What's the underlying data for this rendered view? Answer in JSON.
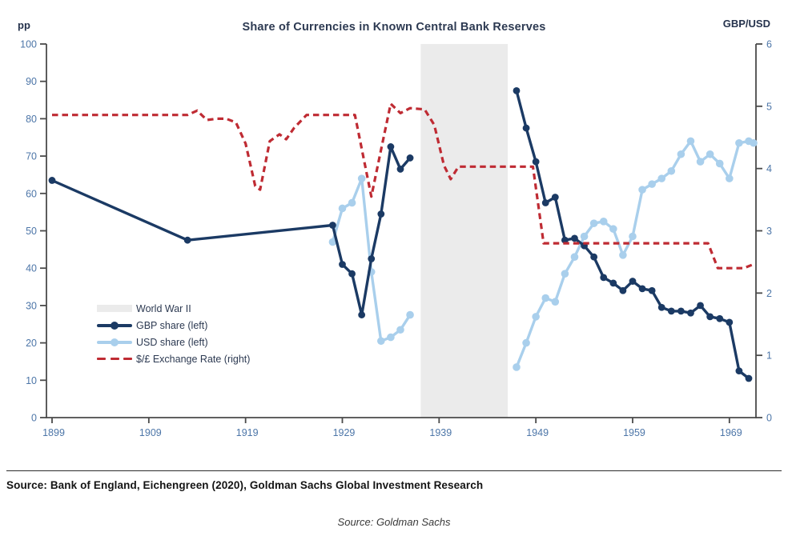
{
  "page": {
    "title": "Share of Currencies in Known Central Bank Reserves",
    "left_axis_unit": "pp",
    "right_axis_unit": "GBP/USD",
    "source_line": "Source: Bank of England, Eichengreen (2020), Goldman Sachs Global Investment Research",
    "caption": "Source: Goldman Sachs"
  },
  "legend": {
    "items": [
      {
        "key": "wwii",
        "label": "World War II"
      },
      {
        "key": "gbp",
        "label": "GBP share (left)"
      },
      {
        "key": "usd",
        "label": "USD share (left)"
      },
      {
        "key": "fx",
        "label": "$/£ Exchange Rate (right)"
      }
    ]
  },
  "colors": {
    "gbp_navy": "#1b3a64",
    "usd_blue": "#a9cfec",
    "fx_red": "#bf2b33",
    "band_grey": "#ebebeb",
    "axis_grey": "#4a4a4a",
    "tick_label_blue": "#4d76a8"
  },
  "chart_data": {
    "type": "line",
    "title": "Share of Currencies in Known Central Bank Reserves",
    "x_range": [
      1899,
      1971.6
    ],
    "x_ticks": [
      1899,
      1909,
      1919,
      1929,
      1939,
      1949,
      1959,
      1969
    ],
    "y_left": {
      "unit": "pp",
      "min": 0,
      "max": 100,
      "ticks": [
        0,
        10,
        20,
        30,
        40,
        50,
        60,
        70,
        80,
        90,
        100
      ]
    },
    "y_right": {
      "unit": "GBP/USD",
      "min": 0,
      "max": 6,
      "ticks": [
        0,
        1,
        2,
        3,
        4,
        5,
        6
      ]
    },
    "grid": false,
    "legend_position": "middle-left",
    "wwii_band": {
      "label": "World War II",
      "from": 1937.1,
      "to": 1946.1,
      "color": "#ebebeb"
    },
    "series": [
      {
        "key": "usd",
        "name": "USD share (left)",
        "axis": "left",
        "style": "solid-dots",
        "color": "#a9cfec",
        "line_width": 3.4,
        "dot_radius": 4.8,
        "segments": [
          [
            [
              1928,
              47
            ],
            [
              1929,
              56
            ],
            [
              1930,
              57.5
            ],
            [
              1931,
              64
            ],
            [
              1932,
              39
            ],
            [
              1933,
              20.5
            ],
            [
              1934,
              21.5
            ],
            [
              1935,
              23.5
            ],
            [
              1936,
              27.5
            ]
          ],
          [
            [
              1947,
              13.5
            ],
            [
              1948,
              20
            ],
            [
              1949,
              27
            ],
            [
              1950,
              32
            ],
            [
              1951,
              31
            ],
            [
              1952,
              38.5
            ],
            [
              1953,
              43
            ],
            [
              1954,
              48.5
            ],
            [
              1955,
              52
            ],
            [
              1956,
              52.5
            ],
            [
              1957,
              50.5
            ],
            [
              1958,
              43.5
            ],
            [
              1959,
              48.5
            ],
            [
              1960,
              61
            ],
            [
              1961,
              62.5
            ],
            [
              1962,
              64
            ],
            [
              1963,
              66
            ],
            [
              1964,
              70.5
            ],
            [
              1965,
              74
            ],
            [
              1966,
              68.5
            ],
            [
              1967,
              70.5
            ],
            [
              1968,
              68
            ],
            [
              1969,
              64
            ],
            [
              1970,
              73.5
            ],
            [
              1971,
              74
            ],
            [
              1971.5,
              73.5
            ]
          ]
        ]
      },
      {
        "key": "gbp",
        "name": "GBP share (left)",
        "axis": "left",
        "style": "solid-dots",
        "color": "#1b3a64",
        "line_width": 3.4,
        "dot_radius": 4.4,
        "segments": [
          [
            [
              1899,
              63.5
            ],
            [
              1913,
              47.5
            ],
            [
              1928,
              51.5
            ],
            [
              1929,
              41
            ],
            [
              1930,
              38.5
            ],
            [
              1931,
              27.5
            ],
            [
              1932,
              42.5
            ],
            [
              1933,
              54.5
            ],
            [
              1934,
              72.5
            ],
            [
              1935,
              66.5
            ],
            [
              1936,
              69.5
            ]
          ],
          [
            [
              1947,
              87.5
            ],
            [
              1948,
              77.5
            ],
            [
              1949,
              68.5
            ],
            [
              1950,
              57.5
            ],
            [
              1951,
              59
            ],
            [
              1952,
              47.5
            ],
            [
              1953,
              48
            ],
            [
              1954,
              46
            ],
            [
              1955,
              43
            ],
            [
              1956,
              37.5
            ],
            [
              1957,
              36
            ],
            [
              1958,
              34
            ],
            [
              1959,
              36.5
            ],
            [
              1960,
              34.5
            ],
            [
              1961,
              34
            ],
            [
              1962,
              29.5
            ],
            [
              1963,
              28.5
            ],
            [
              1964,
              28.5
            ],
            [
              1965,
              28
            ],
            [
              1966,
              30
            ],
            [
              1967,
              27
            ],
            [
              1968,
              26.5
            ],
            [
              1969,
              25.5
            ],
            [
              1970,
              12.5
            ],
            [
              1971,
              10.5
            ]
          ]
        ]
      },
      {
        "key": "fx",
        "name": "$/£ Exchange Rate (right)",
        "axis": "right",
        "style": "dashed",
        "color": "#bf2b33",
        "line_width": 3.2,
        "segments": [
          [
            [
              1899,
              4.86
            ],
            [
              1913,
              4.86
            ],
            [
              1914,
              4.93
            ],
            [
              1915,
              4.78
            ],
            [
              1916,
              4.8
            ],
            [
              1917,
              4.8
            ],
            [
              1918,
              4.74
            ],
            [
              1919,
              4.4
            ],
            [
              1920,
              3.72
            ],
            [
              1920.5,
              3.66
            ],
            [
              1921.5,
              4.44
            ],
            [
              1922.5,
              4.55
            ],
            [
              1923.2,
              4.47
            ],
            [
              1924,
              4.65
            ],
            [
              1925.3,
              4.86
            ],
            [
              1930.3,
              4.86
            ],
            [
              1932,
              3.55
            ],
            [
              1933,
              4.3
            ],
            [
              1934,
              5.04
            ],
            [
              1935,
              4.89
            ],
            [
              1936,
              4.97
            ],
            [
              1937.5,
              4.95
            ],
            [
              1938.5,
              4.7
            ],
            [
              1939.5,
              4.05
            ],
            [
              1940.2,
              3.83
            ],
            [
              1941,
              4.03
            ],
            [
              1948.7,
              4.03
            ],
            [
              1949.8,
              2.8
            ],
            [
              1966.8,
              2.8
            ],
            [
              1967.8,
              2.4
            ],
            [
              1970.5,
              2.4
            ],
            [
              1971.6,
              2.47
            ]
          ]
        ]
      }
    ]
  }
}
